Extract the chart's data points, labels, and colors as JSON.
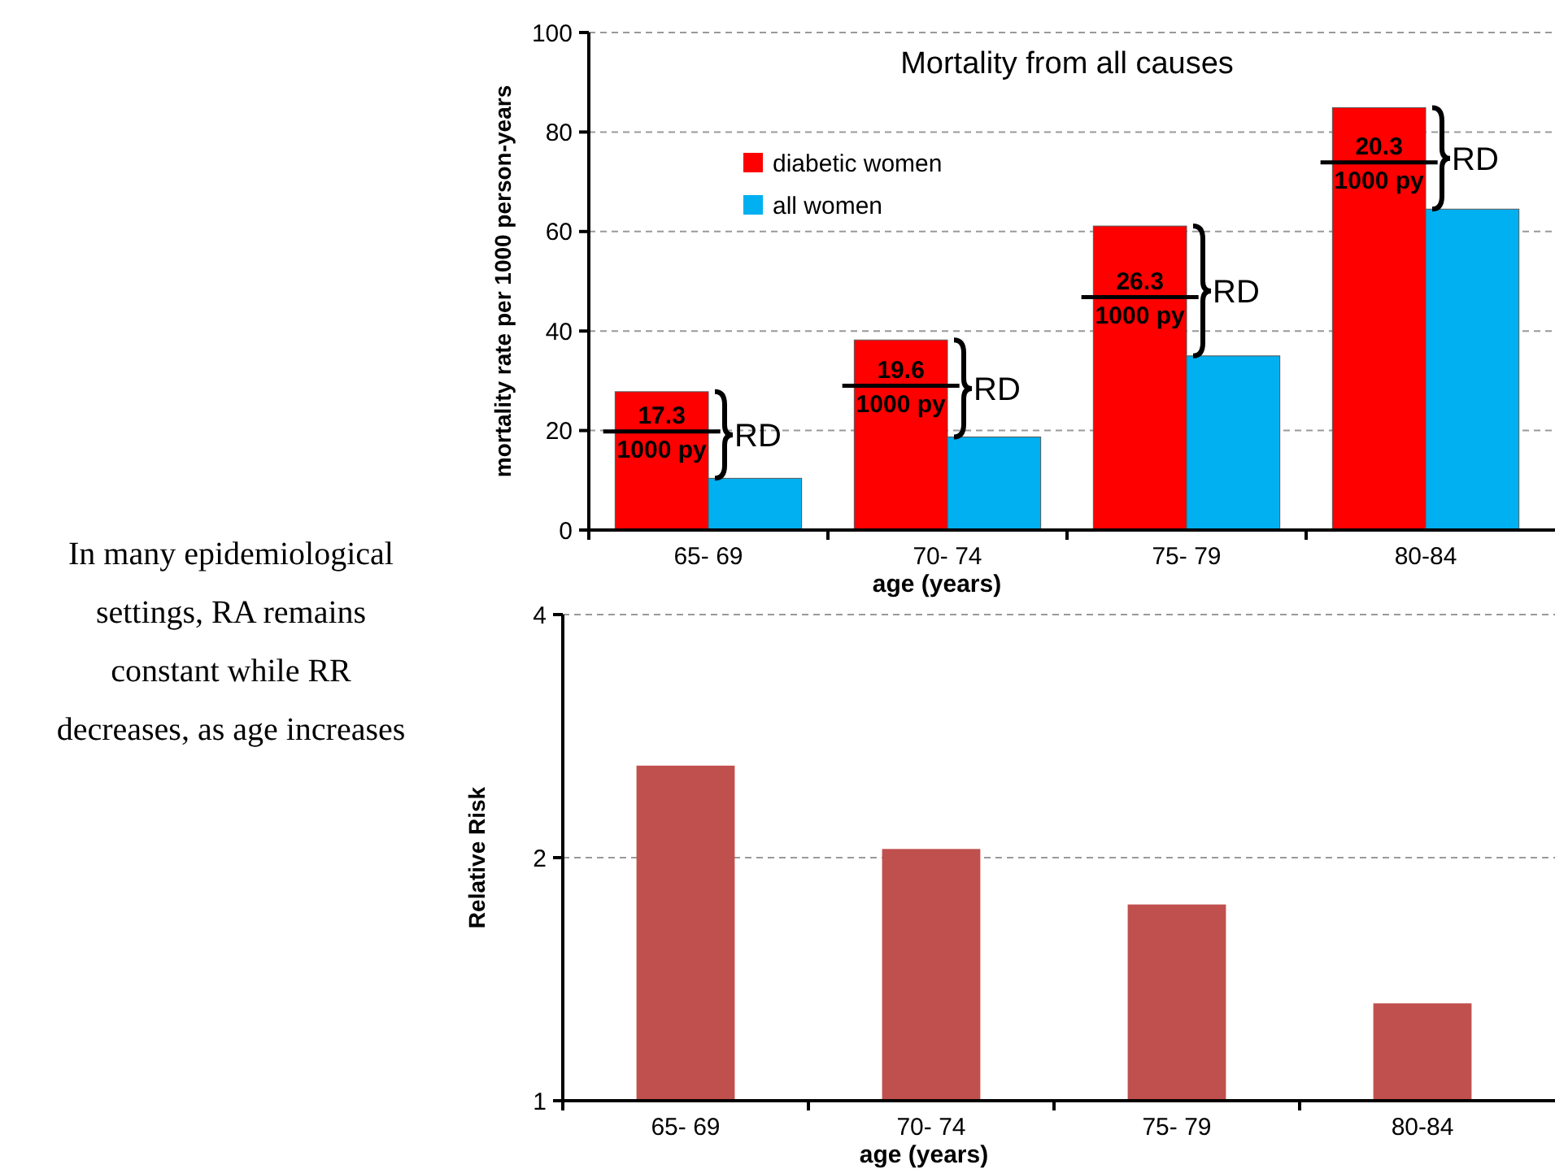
{
  "chart_data": [
    {
      "type": "bar",
      "title": "Mortality from all causes",
      "xlabel": "age (years)",
      "ylabel": "mortality rate per 1000 person-years",
      "categories": [
        "65- 69",
        "70- 74",
        "75- 79",
        "80-84"
      ],
      "series": [
        {
          "name": "diabetic women",
          "color": "#ff0000",
          "values": [
            27.8,
            38.2,
            61.1,
            84.9
          ]
        },
        {
          "name": "all women",
          "color": "#00b0f0",
          "values": [
            10.4,
            18.7,
            35.0,
            64.5
          ]
        }
      ],
      "ylim": [
        0,
        100
      ],
      "yticks": [
        0,
        20,
        40,
        60,
        80,
        100
      ],
      "grid": "y",
      "legend": "top left",
      "annotations": [
        {
          "text": "17.3",
          "x": "65- 69",
          "y": 19.8
        },
        {
          "text": "1000 py",
          "x": "65- 69",
          "y": 19.8
        },
        {
          "text": "RD",
          "x": "65- 69",
          "y": 19.1
        },
        {
          "text": "19.6",
          "x": "70- 74",
          "y": 29
        },
        {
          "text": "1000 py",
          "x": "70- 74",
          "y": 29
        },
        {
          "text": "RD",
          "x": "70- 74",
          "y": 28.5
        },
        {
          "text": "26.3",
          "x": "75- 79",
          "y": 46.8
        },
        {
          "text": "1000 py",
          "x": "75- 79",
          "y": 46.8
        },
        {
          "text": "RD",
          "x": "75- 79",
          "y": 48
        },
        {
          "text": "20.3",
          "x": "80-84",
          "y": 73.9
        },
        {
          "text": "1000 py",
          "x": "80-84",
          "y": 73.9
        },
        {
          "text": "RD",
          "x": "80-84",
          "y": 74.7
        }
      ]
    },
    {
      "type": "bar",
      "xlabel": "age (years)",
      "ylabel": "Relative Risk",
      "categories": [
        "65- 69",
        "70- 74",
        "75- 79",
        "80-84"
      ],
      "values": [
        2.6,
        2.05,
        1.75,
        1.32
      ],
      "color": "#c0504d",
      "log": true,
      "ylim": [
        1,
        4
      ],
      "yticks": [
        1,
        2,
        4
      ],
      "grid": "y"
    },
    {
      "type": "other",
      "annotations": [
        "In many epidemiological settings, RA remains constant while RR decreases, as age increases"
      ]
    }
  ]
}
